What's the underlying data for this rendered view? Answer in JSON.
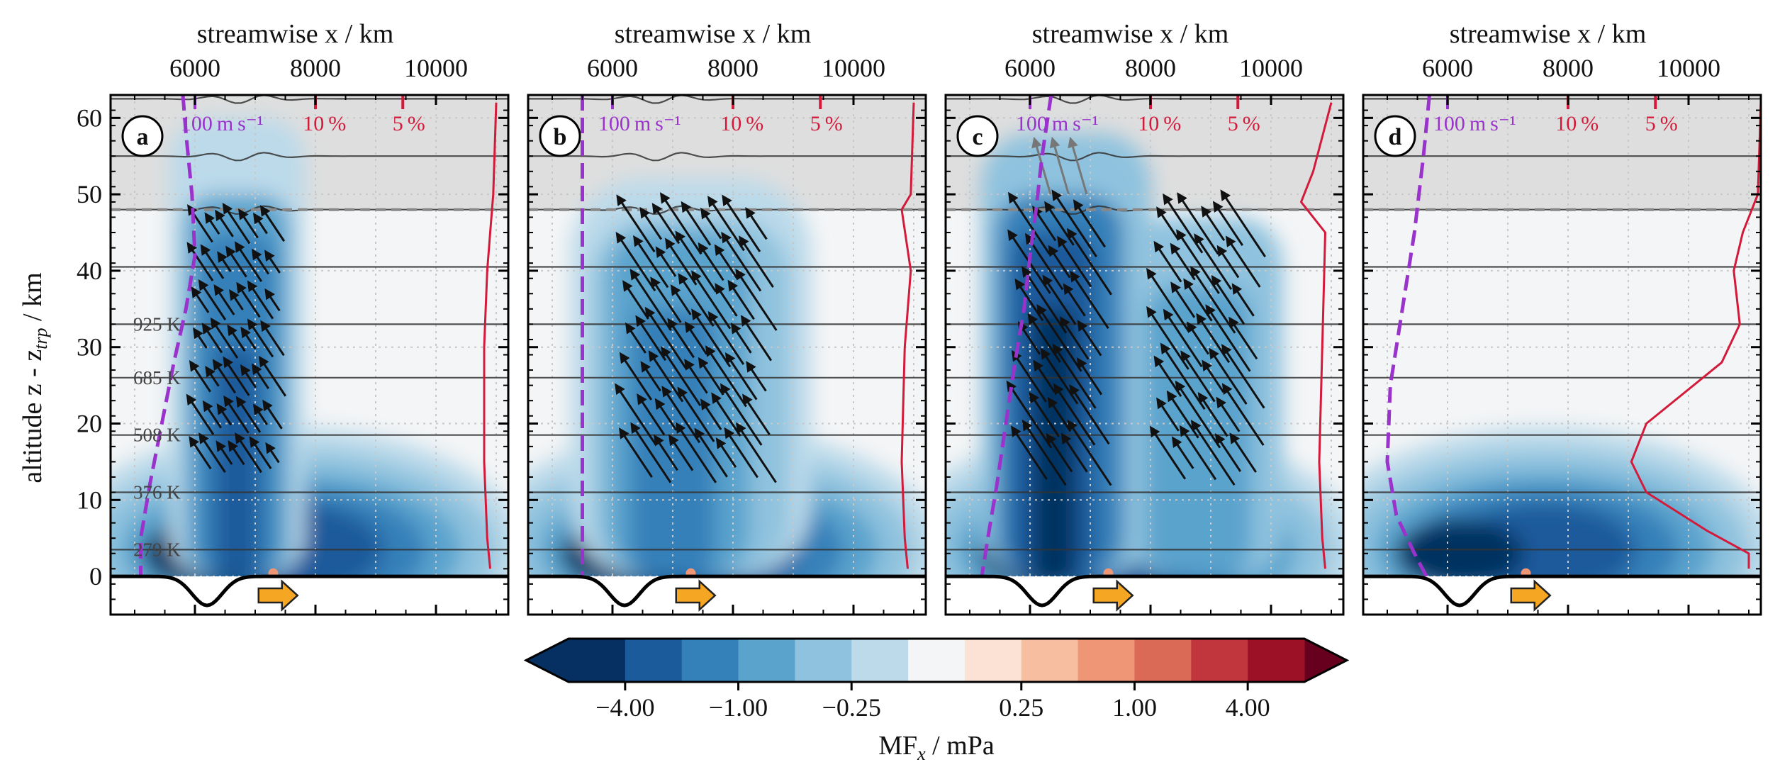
{
  "chart_data": {
    "type": "heatmap",
    "top_axis": {
      "label": "streamwise x / km",
      "ticks": [
        6000,
        8000,
        10000
      ],
      "range": [
        4600,
        11200
      ]
    },
    "left_axis": {
      "label": "altitude z - z",
      "label_sub": "trp",
      "label_unit": " / km",
      "ticks": [
        0,
        10,
        20,
        30,
        40,
        50,
        60
      ],
      "range": [
        -5,
        63
      ]
    },
    "colorbar": {
      "label": "MF",
      "label_sub": "x",
      "label_unit": " / mPa",
      "tick_labels": [
        "−4.00",
        "−1.00",
        "−0.25",
        "0.25",
        "1.00",
        "4.00"
      ],
      "colors": [
        "#053061",
        "#1b5a9b",
        "#3480b9",
        "#5aa3cd",
        "#8fc2de",
        "#bcdaea",
        "#deebf2",
        "#f4f5f6",
        "#fbe2d4",
        "#f7bea0",
        "#ee9675",
        "#da6a55",
        "#c0363c",
        "#9d1127",
        "#67001f"
      ]
    },
    "sponge_base_km": 48,
    "isentropes": [
      {
        "label": "279 K",
        "z": 3.5
      },
      {
        "label": "376 K",
        "z": 11
      },
      {
        "label": "508 K",
        "z": 18.5
      },
      {
        "label": "685 K",
        "z": 26
      },
      {
        "label": "925 K",
        "z": 33
      },
      {
        "z": 40.5
      },
      {
        "z": 48
      },
      {
        "z": 55
      },
      {
        "z": 62.5
      }
    ],
    "scale_labels": {
      "wind": "100 m s⁻¹",
      "pct10": "10 %",
      "pct5": "5 %"
    },
    "series": [
      {
        "panel": "a",
        "wind_profile_x_km": [
          5800,
          5850,
          5950,
          6000,
          5850,
          5650,
          5450,
          5250,
          5100,
          5100
        ],
        "wind_profile_z_km": [
          63,
          58,
          50,
          42,
          35,
          28,
          20,
          12,
          5,
          0
        ],
        "variance_profile_x_km": [
          11000,
          10950,
          10900,
          10850,
          10800,
          10800,
          10850,
          10900
        ],
        "variance_profile_z_km": [
          62,
          50,
          45,
          40,
          30,
          15,
          5,
          1
        ]
      },
      {
        "panel": "b",
        "wind_profile_x_km": [
          5500,
          5500
        ],
        "wind_profile_z_km": [
          63,
          0
        ],
        "variance_profile_x_km": [
          11000,
          10950,
          10800,
          10950,
          10850,
          10800,
          10850,
          10900
        ],
        "variance_profile_z_km": [
          62,
          50,
          48,
          40,
          30,
          15,
          5,
          1
        ]
      },
      {
        "panel": "c",
        "wind_profile_x_km": [
          6350,
          6200,
          6100,
          6000,
          5900,
          5750,
          5600,
          5450,
          5300,
          5200
        ],
        "wind_profile_z_km": [
          63,
          55,
          48,
          42,
          35,
          28,
          20,
          12,
          5,
          0
        ],
        "variance_profile_x_km": [
          11000,
          10700,
          10500,
          10900,
          10850,
          10800,
          10850,
          10900
        ],
        "variance_profile_z_km": [
          62,
          53,
          49,
          45,
          30,
          15,
          5,
          1
        ]
      },
      {
        "panel": "d",
        "wind_profile_x_km": [
          5700,
          5600,
          5450,
          5250,
          5050,
          5000,
          5150,
          5450,
          5650
        ],
        "wind_profile_z_km": [
          63,
          55,
          45,
          35,
          25,
          15,
          8,
          3,
          0
        ],
        "variance_profile_x_km": [
          11200,
          11150,
          10900,
          10750,
          10850,
          10550,
          9300,
          9050,
          9300,
          10300,
          11000,
          11000
        ],
        "variance_profile_z_km": [
          62,
          50,
          45,
          40,
          33,
          28,
          20,
          15,
          11,
          6,
          3,
          1
        ]
      }
    ]
  }
}
